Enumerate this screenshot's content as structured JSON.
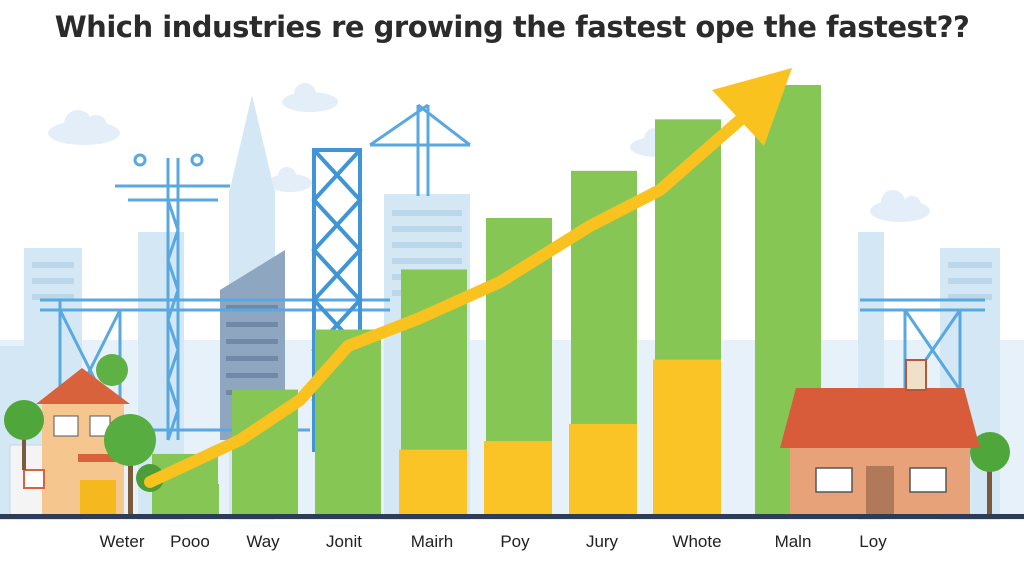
{
  "chart_data": {
    "type": "bar",
    "title": "Which industries re growing the fastest ope the fastest??",
    "xlabel": "",
    "ylabel": "",
    "categories": [
      "Weter",
      "Pooo",
      "Way",
      "Jonit",
      "Mairh",
      "Poy",
      "Jury",
      "Whote",
      "Maln",
      "Loy"
    ],
    "series": [
      {
        "values": [
          7,
          14,
          29,
          43,
          57,
          69,
          80,
          92,
          100,
          null
        ]
      },
      {
        "values": [
          null,
          null,
          null,
          null,
          15,
          17,
          21,
          36,
          null,
          null
        ]
      }
    ],
    "ylim": [
      0,
      100
    ],
    "grid": false,
    "trend_arrow": true
  },
  "colors": {
    "green_bar": "#86c655",
    "yellow_bar": "#fac427",
    "arrow": "#fac21f",
    "sky_building": "#cfe6f5",
    "steel": "#5aa8e0",
    "ground": "#2d3d57",
    "roof": "#d85b3a",
    "title": "#2b2b2b"
  }
}
